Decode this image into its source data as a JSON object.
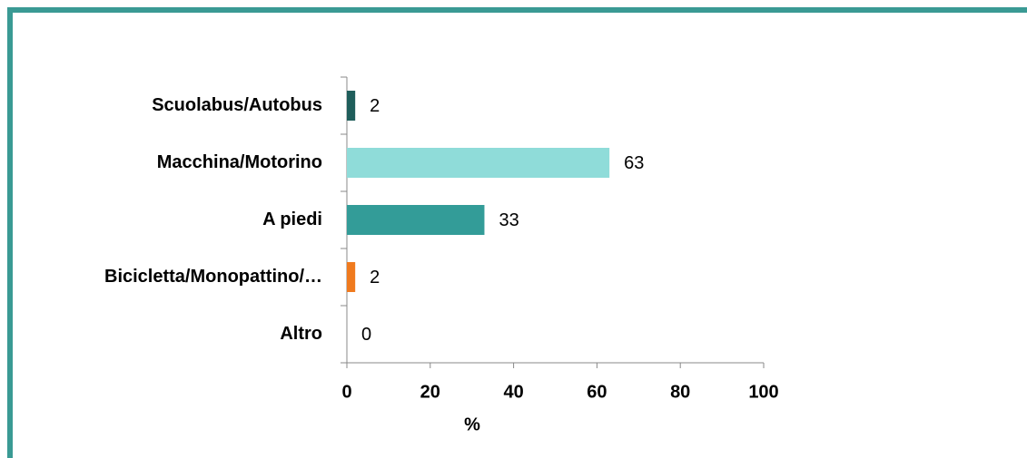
{
  "chart_data": {
    "type": "bar",
    "orientation": "horizontal",
    "categories": [
      "Scuolabus/Autobus",
      "Macchina/Motorino",
      "A piedi",
      "Bicicletta/Monopattino/…",
      "Altro"
    ],
    "values": [
      2,
      63,
      33,
      2,
      0
    ],
    "colors": [
      "#1f5e5b",
      "#8fdcd9",
      "#339c98",
      "#f07a1e",
      "#7f7f7f"
    ],
    "xlabel": "%",
    "xlim": [
      0,
      100
    ],
    "xticks": [
      0,
      20,
      40,
      60,
      80,
      100
    ],
    "grid": false
  }
}
